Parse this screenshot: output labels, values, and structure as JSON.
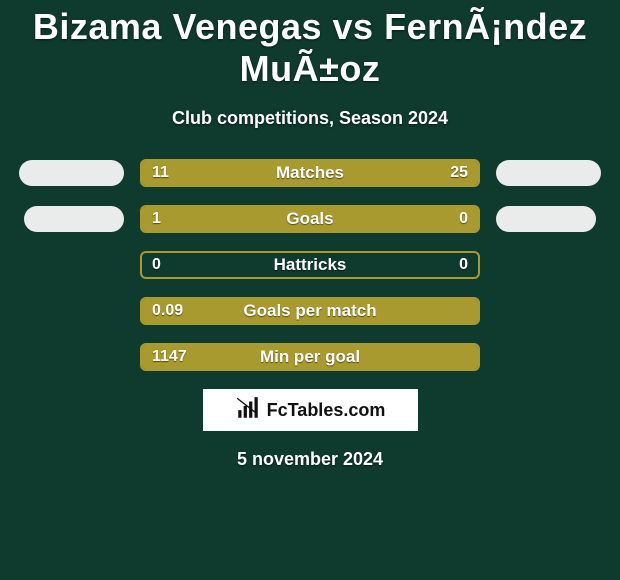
{
  "colors": {
    "background": "#0f3b2e",
    "bar_fill": "#a89a2f",
    "bar_border": "#a89a2f",
    "badge_bg": "#e9eceb",
    "logo_bg": "#ffffff",
    "text": "#ffffff",
    "logo_text": "#111111"
  },
  "header": {
    "title": "Bizama Venegas vs FernÃ¡ndez MuÃ±oz",
    "subtitle": "Club competitions, Season 2024"
  },
  "stats": [
    {
      "label": "Matches",
      "left_value": "11",
      "right_value": "25",
      "left_fill_pct": 30,
      "right_fill_pct": 70,
      "show_badges": true,
      "badge_size": "normal"
    },
    {
      "label": "Goals",
      "left_value": "1",
      "right_value": "0",
      "left_fill_pct": 100,
      "right_fill_pct": 20,
      "show_badges": true,
      "badge_size": "small"
    },
    {
      "label": "Hattricks",
      "left_value": "0",
      "right_value": "0",
      "left_fill_pct": 0,
      "right_fill_pct": 0,
      "show_badges": false
    },
    {
      "label": "Goals per match",
      "left_value": "0.09",
      "right_value": "",
      "left_fill_pct": 100,
      "right_fill_pct": 0,
      "show_badges": false
    },
    {
      "label": "Min per goal",
      "left_value": "1147",
      "right_value": "",
      "left_fill_pct": 100,
      "right_fill_pct": 0,
      "show_badges": false
    }
  ],
  "footer": {
    "brand_icon": "bar-chart-icon",
    "brand_text": "FcTables.com",
    "date": "5 november 2024"
  }
}
